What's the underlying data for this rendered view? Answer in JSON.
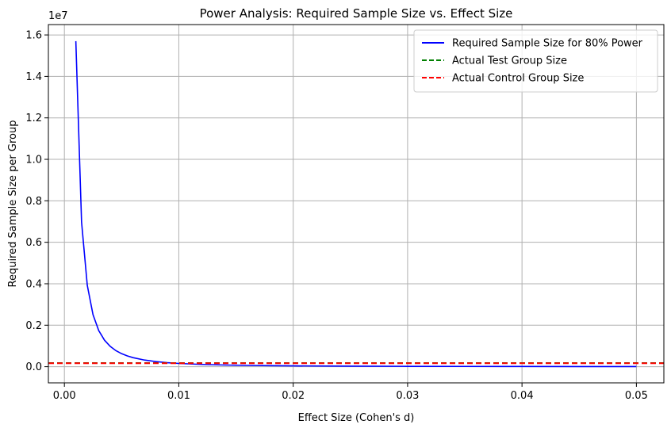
{
  "chart_data": {
    "type": "line",
    "title": "Power Analysis: Required Sample Size vs. Effect Size",
    "xlabel": "Effect Size (Cohen's d)",
    "ylabel": "Required Sample Size per Group",
    "y_offset_label": "1e7",
    "xlim": [
      -0.0014,
      0.0524
    ],
    "ylim": [
      -0.78,
      16.5
    ],
    "y_scale_factor": 10000000,
    "x_ticks": [
      {
        "value": 0.0,
        "label": "0.00"
      },
      {
        "value": 0.01,
        "label": "0.01"
      },
      {
        "value": 0.02,
        "label": "0.02"
      },
      {
        "value": 0.03,
        "label": "0.03"
      },
      {
        "value": 0.04,
        "label": "0.04"
      },
      {
        "value": 0.05,
        "label": "0.05"
      }
    ],
    "y_ticks": [
      {
        "value": 0.0,
        "label": "0.0"
      },
      {
        "value": 0.2,
        "label": "0.2"
      },
      {
        "value": 0.4,
        "label": "0.4"
      },
      {
        "value": 0.6,
        "label": "0.6"
      },
      {
        "value": 0.8,
        "label": "0.8"
      },
      {
        "value": 1.0,
        "label": "1.0"
      },
      {
        "value": 1.2,
        "label": "1.2"
      },
      {
        "value": 1.4,
        "label": "1.4"
      },
      {
        "value": 1.6,
        "label": "1.6"
      }
    ],
    "grid": true,
    "legend_position": "top-right",
    "series": [
      {
        "name": "Required Sample Size for 80% Power",
        "color": "#0000ff",
        "style": "solid",
        "x": [
          0.001,
          0.0015,
          0.002,
          0.0025,
          0.003,
          0.0035,
          0.004,
          0.0045,
          0.005,
          0.0055,
          0.006,
          0.007,
          0.008,
          0.009,
          0.01,
          0.012,
          0.014,
          0.016,
          0.018,
          0.02,
          0.025,
          0.03,
          0.035,
          0.04,
          0.045,
          0.05
        ],
        "y": [
          15700000,
          6980000,
          3925000,
          2512000,
          1744000,
          1281000,
          981000,
          775000,
          628000,
          519000,
          436000,
          320000,
          245000,
          194000,
          157000,
          109000,
          80000,
          61000,
          48000,
          39000,
          25000,
          17000,
          13000,
          10000,
          8000,
          6000
        ]
      },
      {
        "name": "Actual Test Group Size",
        "color": "#008000",
        "style": "dashed",
        "y_constant": 175000
      },
      {
        "name": "Actual Control Group Size",
        "color": "#ff0000",
        "style": "dashed",
        "y_constant": 165000
      }
    ]
  }
}
